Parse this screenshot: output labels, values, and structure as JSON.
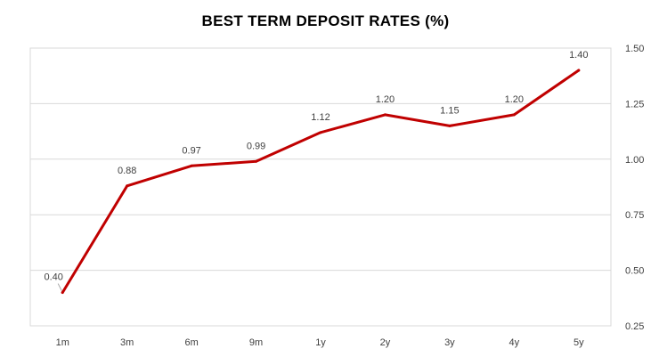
{
  "chart_data": {
    "type": "line",
    "title": "BEST TERM DEPOSIT RATES (%)",
    "xlabel": "",
    "ylabel": "",
    "categories": [
      "1m",
      "3m",
      "6m",
      "9m",
      "1y",
      "2y",
      "3y",
      "4y",
      "5y"
    ],
    "series": [
      {
        "values": [
          0.4,
          0.88,
          0.97,
          0.99,
          1.12,
          1.2,
          1.15,
          1.2,
          1.4
        ],
        "labels": [
          "0.40",
          "0.88",
          "0.97",
          "0.99",
          "1.12",
          "1.20",
          "1.15",
          "1.20",
          "1.40"
        ],
        "color": "#C00000"
      }
    ],
    "ylim": [
      0.25,
      1.5
    ],
    "yticks": [
      "0.25",
      "0.50",
      "0.75",
      "1.00",
      "1.25",
      "1.50"
    ],
    "y_axis_side": "right",
    "grid": true,
    "gridline_color": "#d9d9d9",
    "legend": "none"
  }
}
